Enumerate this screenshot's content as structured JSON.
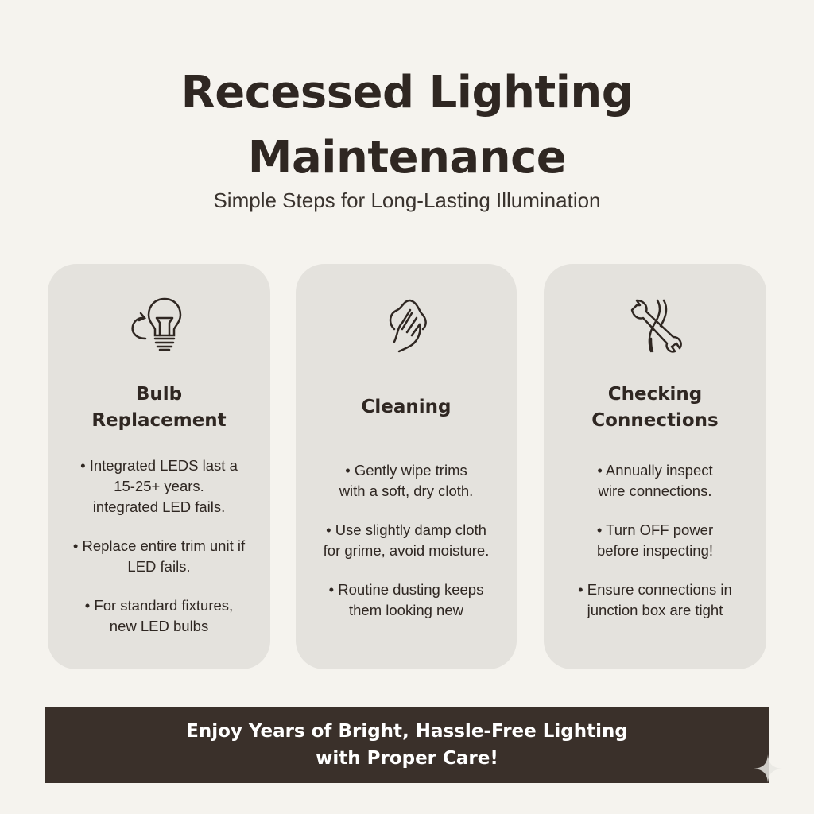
{
  "title": {
    "line1": "Recessed Lighting",
    "line2": "Maintenance"
  },
  "subtitle": "Simple Steps for Long-Lasting Illumination",
  "cards": [
    {
      "icon": "bulb-replace-icon",
      "heading": [
        "Bulb",
        "Replacement"
      ],
      "bullets": [
        [
          "• Integrated LEDS last a",
          "15-25+ years.",
          "integrated LED fails."
        ],
        [
          "• Replace entire trim unit if",
          "LED fails."
        ],
        [
          "• For standard fixtures,",
          "new LED bulbs"
        ]
      ]
    },
    {
      "icon": "hand-cloth-icon",
      "heading": [
        "Cleaning"
      ],
      "bullets": [
        [
          "• Gently wipe trims",
          "with a soft, dry cloth."
        ],
        [
          "• Use slightly damp cloth",
          "for grime, avoid moisture."
        ],
        [
          "• Routine dusting keeps",
          "them looking new"
        ]
      ]
    },
    {
      "icon": "wrench-wires-icon",
      "heading": [
        "Checking",
        "Connections"
      ],
      "bullets": [
        [
          "• Annually inspect",
          "wire connections."
        ],
        [
          "• Turn OFF power",
          "before inspecting!"
        ],
        [
          "• Ensure connections in",
          "junction box are tight"
        ]
      ]
    }
  ],
  "banner": {
    "line1": "Enjoy Years of Bright, Hassle-Free Lighting",
    "line2": "with Proper Care!"
  },
  "colors": {
    "background": "#f5f3ee",
    "card": "#e4e2dd",
    "banner": "#3a302a",
    "text": "#2f2722"
  }
}
